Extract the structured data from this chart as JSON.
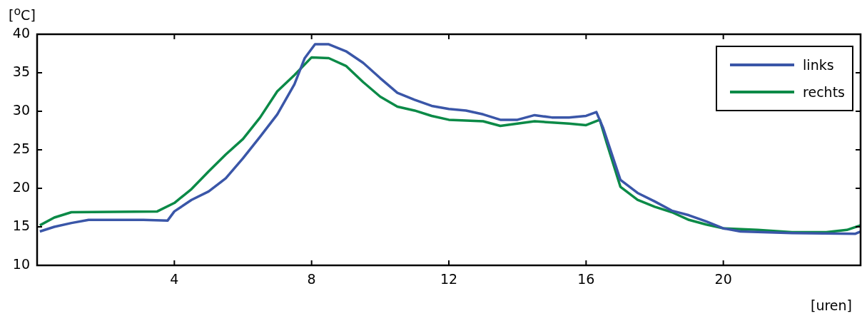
{
  "chart_data": {
    "type": "line",
    "ylabel": "[$^{o}$C]",
    "xlabel": "[uren]",
    "xlim": [
      0,
      24
    ],
    "xticks": [
      4,
      8,
      12,
      16,
      20
    ],
    "ylim": [
      10,
      40
    ],
    "yticks": [
      10,
      15,
      20,
      25,
      30,
      35,
      40
    ],
    "grid": false,
    "legend": "top right",
    "marker": "none",
    "line_style": "solid",
    "series": [
      {
        "name": "links",
        "color": "#3a56a8",
        "x": [
          0.08,
          0.5,
          1,
          1.5,
          3.1,
          3.8,
          4,
          4.5,
          5,
          5.5,
          6,
          6.5,
          7,
          7.5,
          7.8,
          8.1,
          8.5,
          9,
          9.5,
          10,
          10.5,
          11,
          11.5,
          12,
          12.5,
          13,
          13.5,
          14,
          14.5,
          15,
          15.5,
          16,
          16.3,
          16.5,
          17,
          17.5,
          18,
          18.5,
          19,
          19.5,
          20,
          20.5,
          22,
          23.85,
          24
        ],
        "values": [
          14.4,
          15.0,
          15.5,
          15.9,
          15.9,
          15.8,
          17.0,
          18.5,
          19.6,
          21.3,
          23.9,
          26.7,
          29.6,
          33.5,
          36.9,
          38.7,
          38.7,
          37.8,
          36.3,
          34.3,
          32.4,
          31.5,
          30.7,
          30.3,
          30.1,
          29.6,
          28.9,
          28.9,
          29.5,
          29.2,
          29.2,
          29.4,
          29.9,
          27.8,
          21.1,
          19.4,
          18.3,
          17.1,
          16.5,
          15.7,
          14.8,
          14.4,
          14.2,
          14.1,
          14.4
        ]
      },
      {
        "name": "rechts",
        "color": "#0b8a47",
        "x": [
          0.08,
          0.5,
          1,
          3.5,
          4,
          4.5,
          5,
          5.5,
          6,
          6.5,
          7,
          7.5,
          8,
          8.5,
          9,
          9.5,
          10,
          10.5,
          11,
          11.5,
          12,
          13,
          13.5,
          14,
          14.5,
          15.5,
          16,
          16.4,
          16.6,
          17,
          17.5,
          18,
          18.5,
          19,
          19.5,
          20,
          21,
          22,
          23,
          23.6,
          24
        ],
        "values": [
          15.2,
          16.2,
          16.9,
          17.0,
          18.1,
          19.9,
          22.2,
          24.4,
          26.4,
          29.2,
          32.6,
          34.7,
          37.0,
          36.9,
          35.9,
          33.8,
          31.9,
          30.6,
          30.1,
          29.4,
          28.9,
          28.7,
          28.1,
          28.4,
          28.7,
          28.4,
          28.2,
          28.9,
          25.9,
          20.2,
          18.5,
          17.6,
          16.9,
          15.9,
          15.3,
          14.8,
          14.6,
          14.3,
          14.3,
          14.6,
          15.2
        ]
      }
    ]
  }
}
